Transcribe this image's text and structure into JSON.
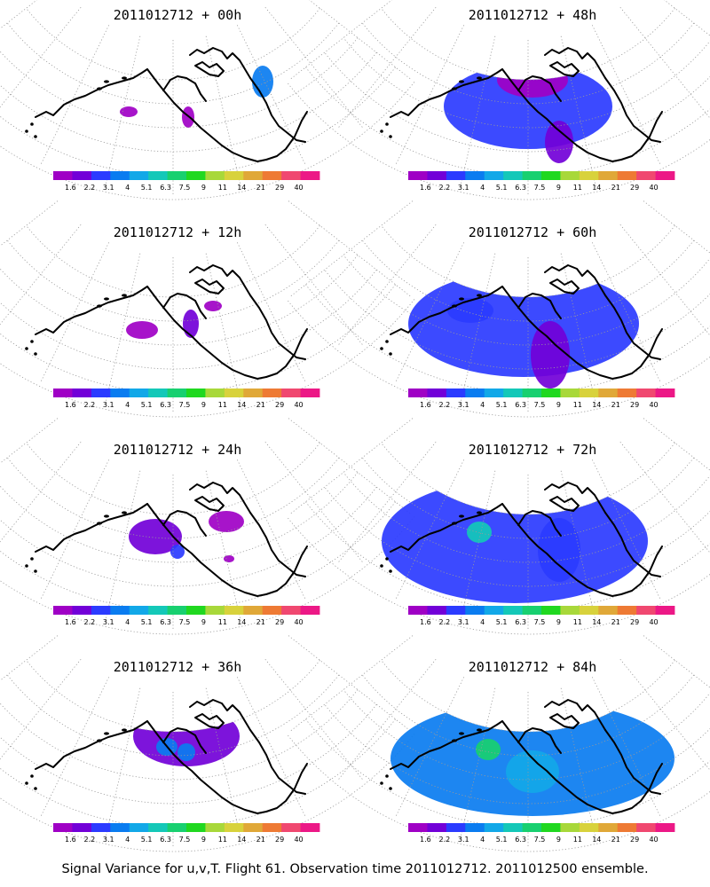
{
  "figure": {
    "caption": "Signal Variance for u,v,T. Flight 61. Observation time 2011012712. 2011012500 ensemble.",
    "colorbar": {
      "labels": [
        "1.6",
        "2.2",
        "3.1",
        "4",
        "5.1",
        "6.3",
        "7.5",
        "9",
        "11",
        "14",
        "21",
        "29",
        "40"
      ],
      "colors": [
        "#9f00c5",
        "#7200d8",
        "#2b3bff",
        "#0a7cf0",
        "#12a8e8",
        "#14c8b8",
        "#18d070",
        "#20d820",
        "#a8d83a",
        "#d8d23c",
        "#e0a838",
        "#ee7a34",
        "#f04870",
        "#ec1886"
      ]
    },
    "panels": [
      {
        "title": "2011012712 + 00h",
        "level": 0
      },
      {
        "title": "2011012712 + 48h",
        "level": 4
      },
      {
        "title": "2011012712 + 12h",
        "level": 1
      },
      {
        "title": "2011012712 + 60h",
        "level": 5
      },
      {
        "title": "2011012712 + 24h",
        "level": 2
      },
      {
        "title": "2011012712 + 72h",
        "level": 6
      },
      {
        "title": "2011012712 + 36h",
        "level": 3
      },
      {
        "title": "2011012712 + 84h",
        "level": 7
      }
    ]
  }
}
